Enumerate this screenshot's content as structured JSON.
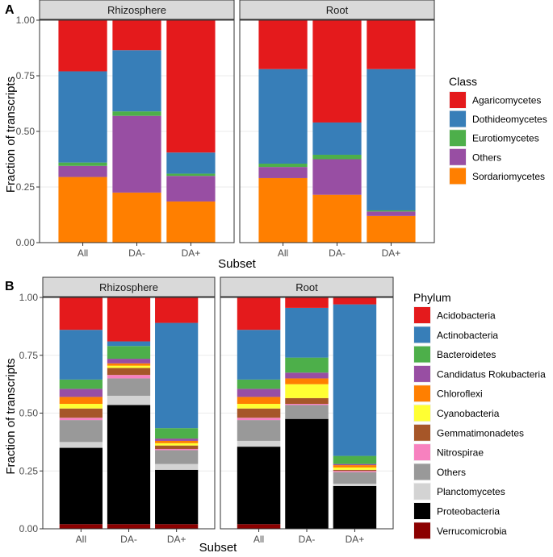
{
  "chart_data": [
    {
      "type": "bar",
      "stacked": true,
      "panel_tag": "A",
      "ylabel": "Fraction of transcripts",
      "xlabel": "Subset",
      "ylim": [
        0,
        1
      ],
      "y_ticks": [
        "0.00",
        "0.25",
        "0.50",
        "0.75",
        "1.00"
      ],
      "y_tick_values": [
        0,
        0.25,
        0.5,
        0.75,
        1.0
      ],
      "categories": [
        "All",
        "DA-",
        "DA+"
      ],
      "facets": [
        "Rhizosphere",
        "Root"
      ],
      "legend_title": "Class",
      "legend": [
        {
          "name": "Agaricomycetes",
          "color": "#e41a1c"
        },
        {
          "name": "Dothideomycetes",
          "color": "#377eb8"
        },
        {
          "name": "Eurotiomycetes",
          "color": "#4daf4a"
        },
        {
          "name": "Others",
          "color": "#984ea3"
        },
        {
          "name": "Sordariomycetes",
          "color": "#ff7f00"
        }
      ],
      "stack_order": [
        "Sordariomycetes",
        "Others",
        "Eurotiomycetes",
        "Dothideomycetes",
        "Agaricomycetes"
      ],
      "series": {
        "Rhizosphere": [
          {
            "name": "Sordariomycetes",
            "values": [
              0.295,
              0.225,
              0.185
            ]
          },
          {
            "name": "Others",
            "values": [
              0.05,
              0.345,
              0.115
            ]
          },
          {
            "name": "Eurotiomycetes",
            "values": [
              0.015,
              0.02,
              0.01
            ]
          },
          {
            "name": "Dothideomycetes",
            "values": [
              0.41,
              0.275,
              0.095
            ]
          },
          {
            "name": "Agaricomycetes",
            "values": [
              0.23,
              0.135,
              0.595
            ]
          }
        ],
        "Root": [
          {
            "name": "Sordariomycetes",
            "values": [
              0.29,
              0.215,
              0.12
            ]
          },
          {
            "name": "Others",
            "values": [
              0.05,
              0.16,
              0.02
            ]
          },
          {
            "name": "Eurotiomycetes",
            "values": [
              0.015,
              0.02,
              0.005
            ]
          },
          {
            "name": "Dothideomycetes",
            "values": [
              0.425,
              0.145,
              0.635
            ]
          },
          {
            "name": "Agaricomycetes",
            "values": [
              0.22,
              0.46,
              0.22
            ]
          }
        ]
      }
    },
    {
      "type": "bar",
      "stacked": true,
      "panel_tag": "B",
      "ylabel": "Fraction of transcripts",
      "xlabel": "Subset",
      "ylim": [
        0,
        1
      ],
      "y_ticks": [
        "0.00",
        "0.25",
        "0.50",
        "0.75",
        "1.00"
      ],
      "y_tick_values": [
        0,
        0.25,
        0.5,
        0.75,
        1.0
      ],
      "categories": [
        "All",
        "DA-",
        "DA+"
      ],
      "facets": [
        "Rhizosphere",
        "Root"
      ],
      "legend_title": "Phylum",
      "legend": [
        {
          "name": "Acidobacteria",
          "color": "#e41a1c"
        },
        {
          "name": "Actinobacteria",
          "color": "#377eb8"
        },
        {
          "name": "Bacteroidetes",
          "color": "#4daf4a"
        },
        {
          "name": "Candidatus Rokubacteria",
          "color": "#984ea3"
        },
        {
          "name": "Chloroflexi",
          "color": "#ff7f00"
        },
        {
          "name": "Cyanobacteria",
          "color": "#ffff33"
        },
        {
          "name": "Gemmatimonadetes",
          "color": "#a65628"
        },
        {
          "name": "Nitrospirae",
          "color": "#f781bf"
        },
        {
          "name": "Others",
          "color": "#999999"
        },
        {
          "name": "Planctomycetes",
          "color": "#d3d3d3"
        },
        {
          "name": "Proteobacteria",
          "color": "#000000"
        },
        {
          "name": "Verrucomicrobia",
          "color": "#8b0000"
        }
      ],
      "stack_order": [
        "Verrucomicrobia",
        "Proteobacteria",
        "Planctomycetes",
        "Others",
        "Nitrospirae",
        "Gemmatimonadetes",
        "Cyanobacteria",
        "Chloroflexi",
        "Candidatus Rokubacteria",
        "Bacteroidetes",
        "Actinobacteria",
        "Acidobacteria"
      ],
      "series": {
        "Rhizosphere": [
          {
            "name": "Verrucomicrobia",
            "values": [
              0.02,
              0.02,
              0.02
            ]
          },
          {
            "name": "Proteobacteria",
            "values": [
              0.33,
              0.515,
              0.235
            ]
          },
          {
            "name": "Planctomycetes",
            "values": [
              0.025,
              0.04,
              0.025
            ]
          },
          {
            "name": "Others",
            "values": [
              0.095,
              0.075,
              0.06
            ]
          },
          {
            "name": "Nitrospirae",
            "values": [
              0.01,
              0.015,
              0.005
            ]
          },
          {
            "name": "Gemmatimonadetes",
            "values": [
              0.04,
              0.03,
              0.015
            ]
          },
          {
            "name": "Cyanobacteria",
            "values": [
              0.02,
              0.01,
              0.01
            ]
          },
          {
            "name": "Chloroflexi",
            "values": [
              0.03,
              0.01,
              0.01
            ]
          },
          {
            "name": "Candidatus Rokubacteria",
            "values": [
              0.035,
              0.02,
              0.01
            ]
          },
          {
            "name": "Bacteroidetes",
            "values": [
              0.04,
              0.055,
              0.045
            ]
          },
          {
            "name": "Actinobacteria",
            "values": [
              0.215,
              0.02,
              0.455
            ]
          },
          {
            "name": "Acidobacteria",
            "values": [
              0.14,
              0.19,
              0.11
            ]
          }
        ],
        "Root": [
          {
            "name": "Verrucomicrobia",
            "values": [
              0.02,
              0.0,
              0.0
            ]
          },
          {
            "name": "Proteobacteria",
            "values": [
              0.335,
              0.475,
              0.185
            ]
          },
          {
            "name": "Planctomycetes",
            "values": [
              0.025,
              0.0,
              0.01
            ]
          },
          {
            "name": "Others",
            "values": [
              0.09,
              0.06,
              0.05
            ]
          },
          {
            "name": "Nitrospirae",
            "values": [
              0.01,
              0.005,
              0.005
            ]
          },
          {
            "name": "Gemmatimonadetes",
            "values": [
              0.04,
              0.025,
              0.005
            ]
          },
          {
            "name": "Cyanobacteria",
            "values": [
              0.02,
              0.06,
              0.01
            ]
          },
          {
            "name": "Chloroflexi",
            "values": [
              0.03,
              0.025,
              0.01
            ]
          },
          {
            "name": "Candidatus Rokubacteria",
            "values": [
              0.035,
              0.025,
              0.005
            ]
          },
          {
            "name": "Bacteroidetes",
            "values": [
              0.04,
              0.065,
              0.035
            ]
          },
          {
            "name": "Actinobacteria",
            "values": [
              0.215,
              0.215,
              0.655
            ]
          },
          {
            "name": "Acidobacteria",
            "values": [
              0.14,
              0.045,
              0.03
            ]
          }
        ]
      }
    }
  ]
}
